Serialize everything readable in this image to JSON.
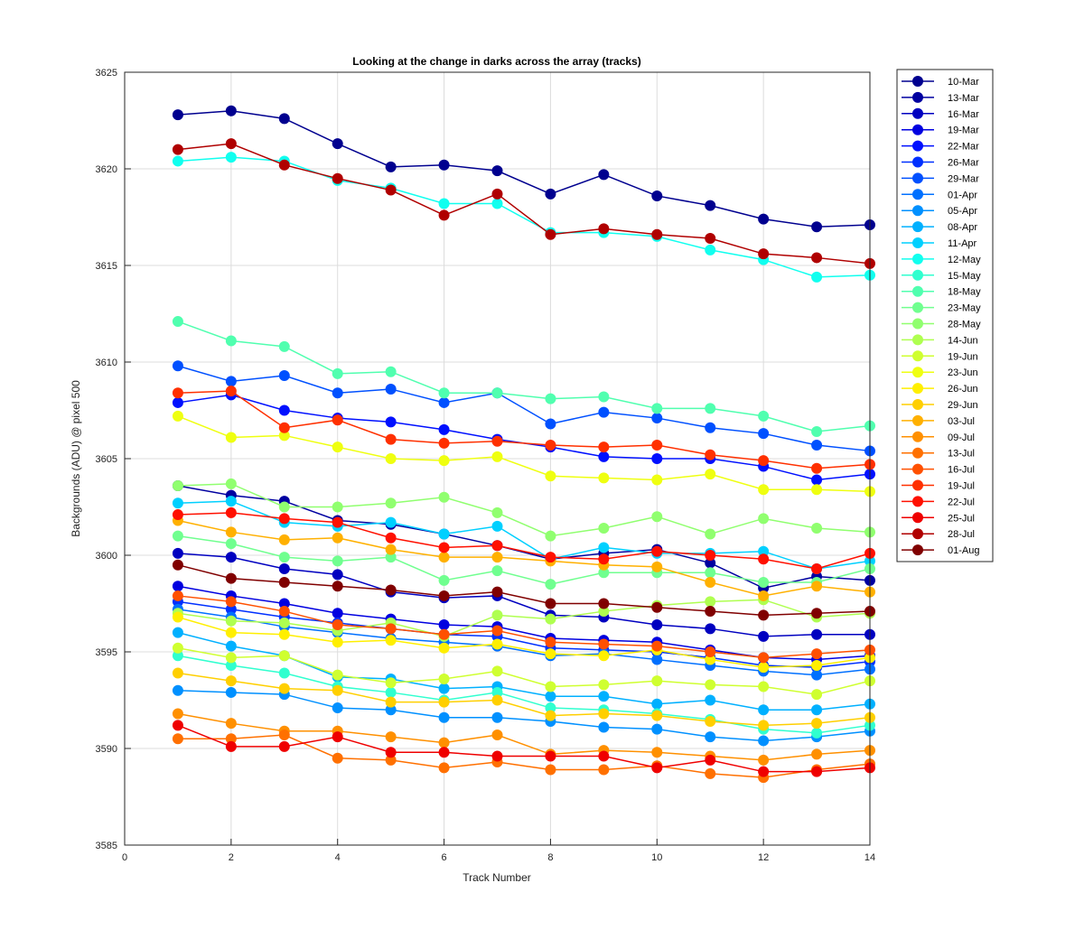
{
  "chart_data": {
    "type": "line",
    "title": "Looking at the change in darks across the array (tracks)",
    "xlabel": "Track Number",
    "ylabel": "Backgrounds (ADU) @ pixel 500",
    "xlim": [
      0,
      14
    ],
    "ylim": [
      3585,
      3625
    ],
    "xticks": [
      0,
      2,
      4,
      6,
      8,
      10,
      12,
      14
    ],
    "yticks": [
      3585,
      3590,
      3595,
      3600,
      3605,
      3610,
      3615,
      3620,
      3625
    ],
    "grid": true,
    "legend_position": "outside-top-right",
    "marker": "circle",
    "x": [
      1,
      2,
      3,
      4,
      5,
      6,
      7,
      8,
      9,
      10,
      11,
      12,
      13,
      14
    ],
    "series": [
      {
        "name": "10-Mar",
        "color": "#00008f",
        "values": [
          3622.8,
          3623.0,
          3622.6,
          3621.3,
          3620.1,
          3620.2,
          3619.9,
          3618.7,
          3619.7,
          3618.6,
          3618.1,
          3617.4,
          3617.0,
          3617.1
        ]
      },
      {
        "name": "13-Mar",
        "color": "#0000a0",
        "values": [
          3603.6,
          3603.1,
          3602.8,
          3601.8,
          3601.6,
          3601.1,
          3600.5,
          3599.8,
          3600.1,
          3600.3,
          3599.6,
          3598.3,
          3598.9,
          3598.7
        ]
      },
      {
        "name": "16-Mar",
        "color": "#0000c0",
        "values": [
          3600.1,
          3599.9,
          3599.3,
          3599.0,
          3598.1,
          3597.8,
          3597.9,
          3596.9,
          3596.8,
          3596.4,
          3596.2,
          3595.8,
          3595.9,
          3595.9
        ]
      },
      {
        "name": "19-Mar",
        "color": "#0000e0",
        "values": [
          3598.4,
          3597.9,
          3597.5,
          3597.0,
          3596.7,
          3596.4,
          3596.3,
          3595.7,
          3595.6,
          3595.5,
          3595.1,
          3594.7,
          3594.6,
          3594.8
        ]
      },
      {
        "name": "22-Mar",
        "color": "#0010ff",
        "values": [
          3607.9,
          3608.3,
          3607.5,
          3607.1,
          3606.9,
          3606.5,
          3606.0,
          3605.6,
          3605.1,
          3605.0,
          3605.0,
          3604.6,
          3603.9,
          3604.2
        ]
      },
      {
        "name": "26-Mar",
        "color": "#0030ff",
        "values": [
          3597.6,
          3597.2,
          3596.8,
          3596.5,
          3596.2,
          3595.9,
          3595.8,
          3595.2,
          3595.1,
          3595.0,
          3594.7,
          3594.3,
          3594.2,
          3594.5
        ]
      },
      {
        "name": "29-Mar",
        "color": "#0050ff",
        "values": [
          3609.8,
          3609.0,
          3609.3,
          3608.4,
          3608.6,
          3607.9,
          3608.4,
          3606.8,
          3607.4,
          3607.1,
          3606.6,
          3606.3,
          3605.7,
          3605.4
        ]
      },
      {
        "name": "01-Apr",
        "color": "#0070ff",
        "values": [
          3597.2,
          3596.8,
          3596.3,
          3596.0,
          3595.7,
          3595.5,
          3595.3,
          3594.8,
          3594.9,
          3594.6,
          3594.3,
          3594.0,
          3593.8,
          3594.1
        ]
      },
      {
        "name": "05-Apr",
        "color": "#0090ff",
        "values": [
          3593.0,
          3592.9,
          3592.8,
          3592.1,
          3592.0,
          3591.6,
          3591.6,
          3591.4,
          3591.1,
          3591.0,
          3590.6,
          3590.4,
          3590.6,
          3590.9
        ]
      },
      {
        "name": "08-Apr",
        "color": "#00b0ff",
        "values": [
          3596.0,
          3595.3,
          3594.8,
          3593.7,
          3593.6,
          3593.1,
          3593.2,
          3592.7,
          3592.7,
          3592.3,
          3592.5,
          3592.0,
          3592.0,
          3592.3
        ]
      },
      {
        "name": "11-Apr",
        "color": "#00d0ff",
        "values": [
          3602.7,
          3602.8,
          3601.7,
          3601.5,
          3601.7,
          3601.1,
          3601.5,
          3599.8,
          3600.4,
          3600.1,
          3600.1,
          3600.2,
          3599.3,
          3599.7
        ]
      },
      {
        "name": "12-May",
        "color": "#10ffef",
        "values": [
          3620.4,
          3620.6,
          3620.4,
          3619.4,
          3619.0,
          3618.2,
          3618.2,
          3616.7,
          3616.7,
          3616.5,
          3615.8,
          3615.3,
          3614.4,
          3614.5
        ]
      },
      {
        "name": "15-May",
        "color": "#30ffcf",
        "values": [
          3594.8,
          3594.3,
          3593.9,
          3593.2,
          3592.9,
          3592.5,
          3592.9,
          3592.1,
          3592.0,
          3591.8,
          3591.5,
          3591.0,
          3590.8,
          3591.2
        ]
      },
      {
        "name": "18-May",
        "color": "#50ffaf",
        "values": [
          3612.1,
          3611.1,
          3610.8,
          3609.4,
          3609.5,
          3608.4,
          3608.4,
          3608.1,
          3608.2,
          3607.6,
          3607.6,
          3607.2,
          3606.4,
          3606.7
        ]
      },
      {
        "name": "23-May",
        "color": "#70ff8f",
        "values": [
          3601.0,
          3600.6,
          3599.9,
          3599.7,
          3599.9,
          3598.7,
          3599.2,
          3598.5,
          3599.1,
          3599.1,
          3599.1,
          3598.6,
          3598.6,
          3599.3
        ]
      },
      {
        "name": "28-May",
        "color": "#90ff6f",
        "values": [
          3603.6,
          3603.7,
          3602.5,
          3602.5,
          3602.7,
          3603.0,
          3602.2,
          3601.0,
          3601.4,
          3602.0,
          3601.1,
          3601.9,
          3601.4,
          3601.2
        ]
      },
      {
        "name": "14-Jun",
        "color": "#afff50",
        "values": [
          3597.0,
          3596.6,
          3596.5,
          3596.1,
          3596.5,
          3595.8,
          3596.9,
          3596.7,
          3597.1,
          3597.4,
          3597.6,
          3597.7,
          3596.8,
          3597.0
        ]
      },
      {
        "name": "19-Jun",
        "color": "#cfff30",
        "values": [
          3595.2,
          3594.7,
          3594.8,
          3593.8,
          3593.4,
          3593.6,
          3594.0,
          3593.2,
          3593.3,
          3593.5,
          3593.3,
          3593.2,
          3592.8,
          3593.5
        ]
      },
      {
        "name": "23-Jun",
        "color": "#efff10",
        "values": [
          3607.2,
          3606.1,
          3606.2,
          3605.6,
          3605.0,
          3604.9,
          3605.1,
          3604.1,
          3604.0,
          3603.9,
          3604.2,
          3603.4,
          3603.4,
          3603.3
        ]
      },
      {
        "name": "26-Jun",
        "color": "#ffef00",
        "values": [
          3596.8,
          3596.0,
          3595.9,
          3595.5,
          3595.6,
          3595.2,
          3595.4,
          3594.9,
          3594.8,
          3595.1,
          3594.6,
          3594.2,
          3594.3,
          3594.7
        ]
      },
      {
        "name": "29-Jun",
        "color": "#ffcf00",
        "values": [
          3593.9,
          3593.5,
          3593.1,
          3593.0,
          3592.4,
          3592.4,
          3592.5,
          3591.7,
          3591.8,
          3591.7,
          3591.4,
          3591.2,
          3591.3,
          3591.6
        ]
      },
      {
        "name": "03-Jul",
        "color": "#ffb000",
        "values": [
          3601.8,
          3601.2,
          3600.8,
          3600.9,
          3600.3,
          3599.9,
          3599.9,
          3599.7,
          3599.5,
          3599.4,
          3598.6,
          3597.9,
          3598.4,
          3598.1
        ]
      },
      {
        "name": "09-Jul",
        "color": "#ff9000",
        "values": [
          3591.8,
          3591.3,
          3590.9,
          3590.9,
          3590.6,
          3590.3,
          3590.7,
          3589.7,
          3589.9,
          3589.8,
          3589.6,
          3589.4,
          3589.7,
          3589.9
        ]
      },
      {
        "name": "13-Jul",
        "color": "#ff7000",
        "values": [
          3590.5,
          3590.5,
          3590.7,
          3589.5,
          3589.4,
          3589.0,
          3589.3,
          3588.9,
          3588.9,
          3589.1,
          3588.7,
          3588.5,
          3588.9,
          3589.2
        ]
      },
      {
        "name": "16-Jul",
        "color": "#ff5000",
        "values": [
          3597.9,
          3597.6,
          3597.1,
          3596.4,
          3596.2,
          3595.9,
          3596.1,
          3595.5,
          3595.4,
          3595.3,
          3595.0,
          3594.7,
          3594.9,
          3595.1
        ]
      },
      {
        "name": "19-Jul",
        "color": "#ff3000",
        "values": [
          3608.4,
          3608.5,
          3606.6,
          3607.0,
          3606.0,
          3605.8,
          3605.9,
          3605.7,
          3605.6,
          3605.7,
          3605.2,
          3604.9,
          3604.5,
          3604.7
        ]
      },
      {
        "name": "22-Jul",
        "color": "#ff1000",
        "values": [
          3602.1,
          3602.2,
          3601.9,
          3601.7,
          3600.9,
          3600.4,
          3600.5,
          3599.9,
          3599.8,
          3600.2,
          3600.0,
          3599.8,
          3599.3,
          3600.1
        ]
      },
      {
        "name": "25-Jul",
        "color": "#ef0000",
        "values": [
          3591.2,
          3590.1,
          3590.1,
          3590.6,
          3589.8,
          3589.8,
          3589.6,
          3589.6,
          3589.6,
          3589.0,
          3589.4,
          3588.8,
          3588.8,
          3589.0
        ]
      },
      {
        "name": "28-Jul",
        "color": "#b00000",
        "values": [
          3621.0,
          3621.3,
          3620.2,
          3619.5,
          3618.9,
          3617.6,
          3618.7,
          3616.6,
          3616.9,
          3616.6,
          3616.4,
          3615.6,
          3615.4,
          3615.1
        ]
      },
      {
        "name": "01-Aug",
        "color": "#800000",
        "values": [
          3599.5,
          3598.8,
          3598.6,
          3598.4,
          3598.2,
          3597.9,
          3598.1,
          3597.5,
          3597.5,
          3597.3,
          3597.1,
          3596.9,
          3597.0,
          3597.1
        ]
      }
    ]
  }
}
